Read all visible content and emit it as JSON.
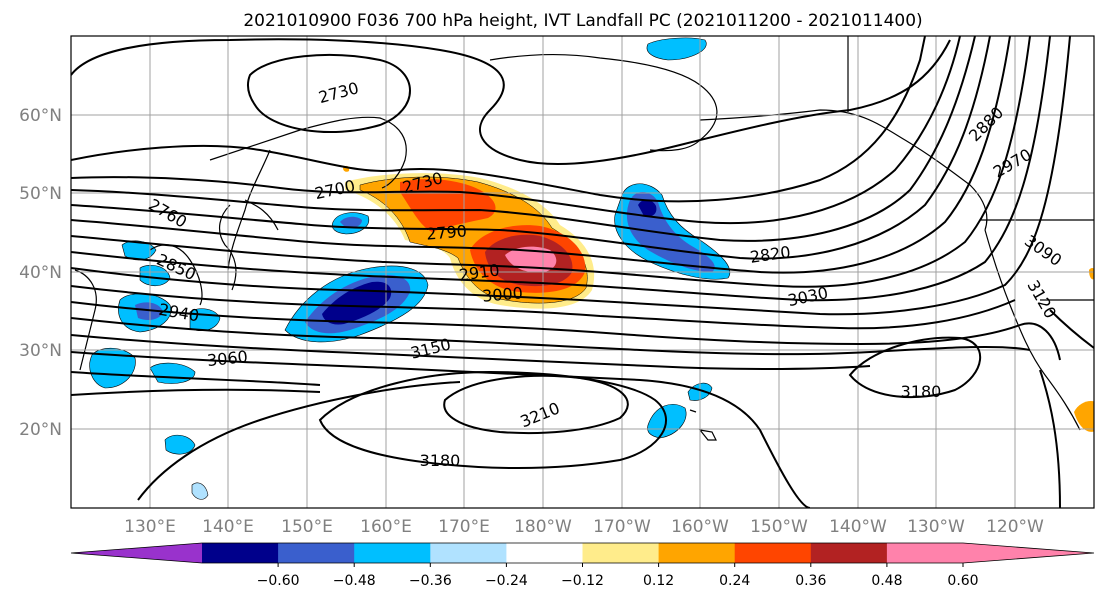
{
  "title": "2021010900 F036 700 hPa height, IVT Landfall PC (2021011200 - 2021011400)",
  "lat_ticks": [
    "60°N",
    "50°N",
    "40°N",
    "30°N",
    "20°N"
  ],
  "lon_ticks": [
    "130°E",
    "140°E",
    "150°E",
    "160°E",
    "170°E",
    "180°W",
    "170°W",
    "160°W",
    "150°W",
    "140°W",
    "130°W",
    "120°W"
  ],
  "contour_labels": [
    "2730",
    "2760",
    "2700",
    "2730",
    "2790",
    "2850",
    "2940",
    "2910",
    "3000",
    "2820",
    "3030",
    "3060",
    "3150",
    "3210",
    "3180",
    "3180",
    "2880",
    "2970",
    "3090",
    "3120"
  ],
  "colorbar": {
    "ticks": [
      "−0.60",
      "−0.48",
      "−0.36",
      "−0.24",
      "−0.12",
      "0.12",
      "0.24",
      "0.36",
      "0.48",
      "0.60"
    ],
    "colors": [
      "#9932cc",
      "#00008b",
      "#3a5fcd",
      "#00bfff",
      "#b0e2ff",
      "#ffffff",
      "#ffec8b",
      "#ffa500",
      "#ff4500",
      "#b22222",
      "#ff82ab",
      "#ff82ab"
    ]
  }
}
